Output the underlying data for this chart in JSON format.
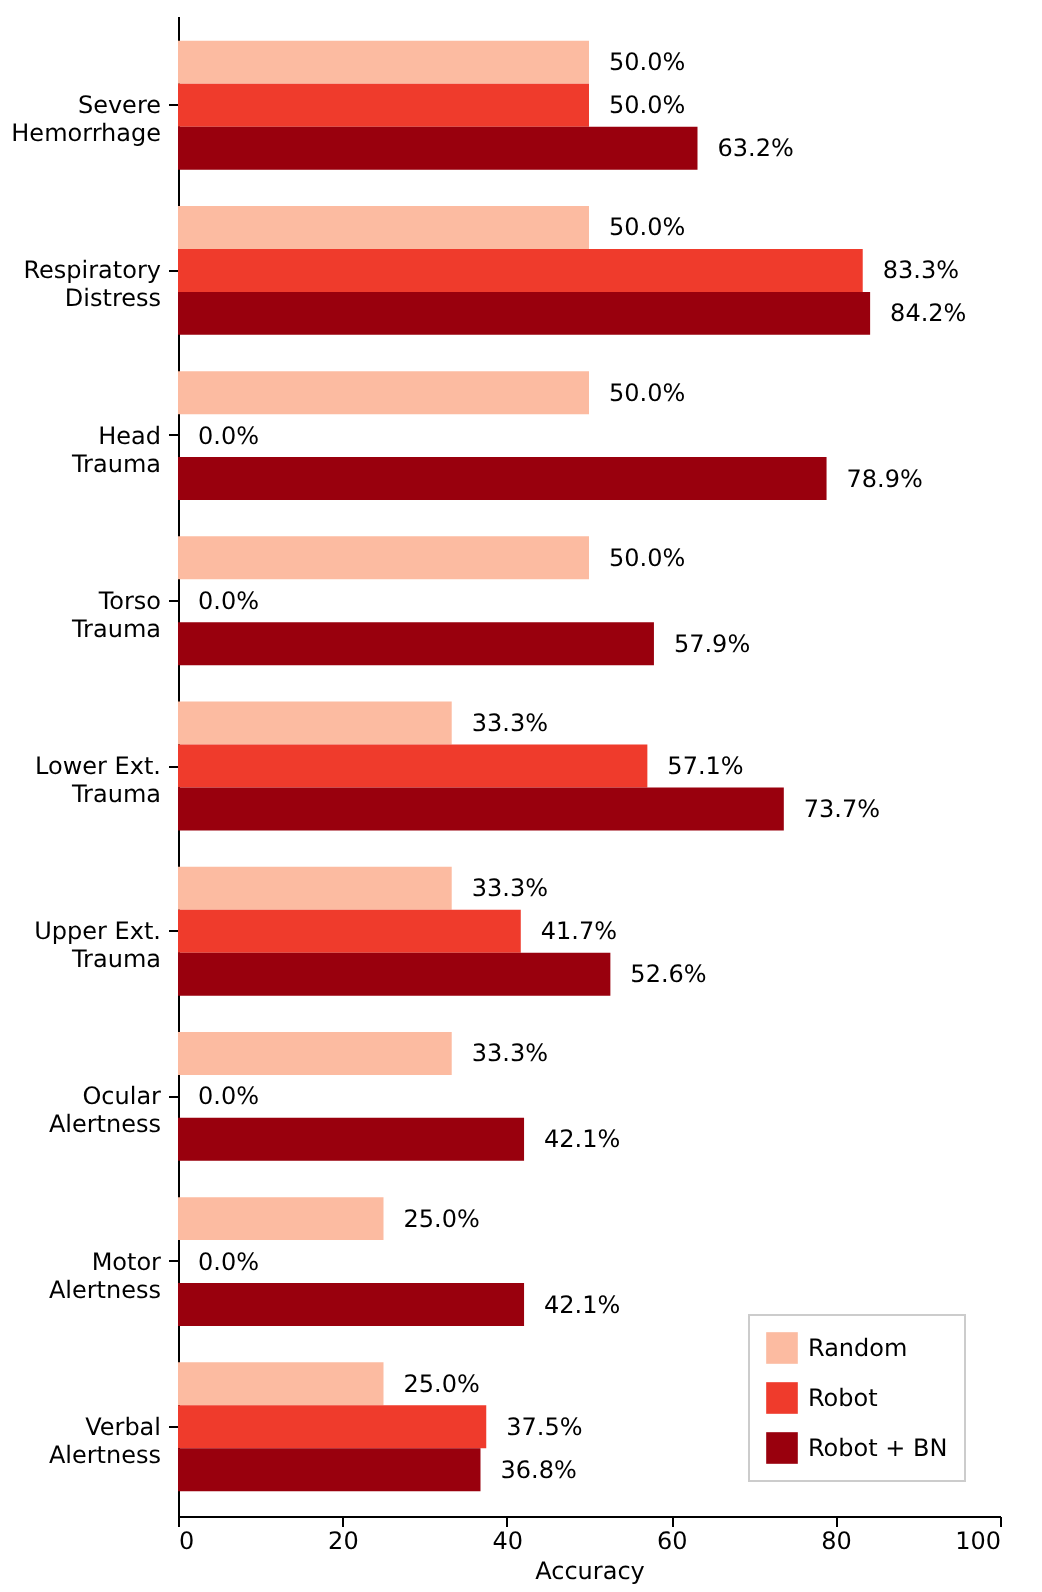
{
  "chart_data": {
    "type": "bar",
    "orientation": "horizontal",
    "xlabel": "Accuracy",
    "categories": [
      "Severe\nHemorrhage",
      "Respiratory\nDistress",
      "Head\nTrauma",
      "Torso\nTrauma",
      "Lower Ext.\nTrauma",
      "Upper Ext.\nTrauma",
      "Ocular\nAlertness",
      "Motor\nAlertness",
      "Verbal\nAlertness"
    ],
    "series": [
      {
        "name": "Random",
        "color": "#fcbba1",
        "values": [
          50.0,
          50.0,
          50.0,
          50.0,
          33.3,
          33.3,
          33.3,
          25.0,
          25.0
        ],
        "value_labels": [
          "50.0%",
          "50.0%",
          "50.0%",
          "50.0%",
          "33.3%",
          "33.3%",
          "33.3%",
          "25.0%",
          "25.0%"
        ]
      },
      {
        "name": "Robot",
        "color": "#ef3b2c",
        "values": [
          50.0,
          83.3,
          0.0,
          0.0,
          57.1,
          41.7,
          0.0,
          0.0,
          37.5
        ],
        "value_labels": [
          "50.0%",
          "83.3%",
          "0.0%",
          "0.0%",
          "57.1%",
          "41.7%",
          "0.0%",
          "0.0%",
          "37.5%"
        ]
      },
      {
        "name": "Robot + BN",
        "color": "#99000d",
        "values": [
          63.2,
          84.2,
          78.9,
          57.9,
          73.7,
          52.6,
          42.1,
          42.1,
          36.8
        ],
        "value_labels": [
          "63.2%",
          "84.2%",
          "78.9%",
          "57.9%",
          "73.7%",
          "52.6%",
          "42.1%",
          "42.1%",
          "36.8%"
        ]
      }
    ],
    "xlim": [
      0,
      100
    ],
    "xticks": [
      0,
      20,
      40,
      60,
      80,
      100
    ],
    "grid": false,
    "legend": "bottom right"
  }
}
